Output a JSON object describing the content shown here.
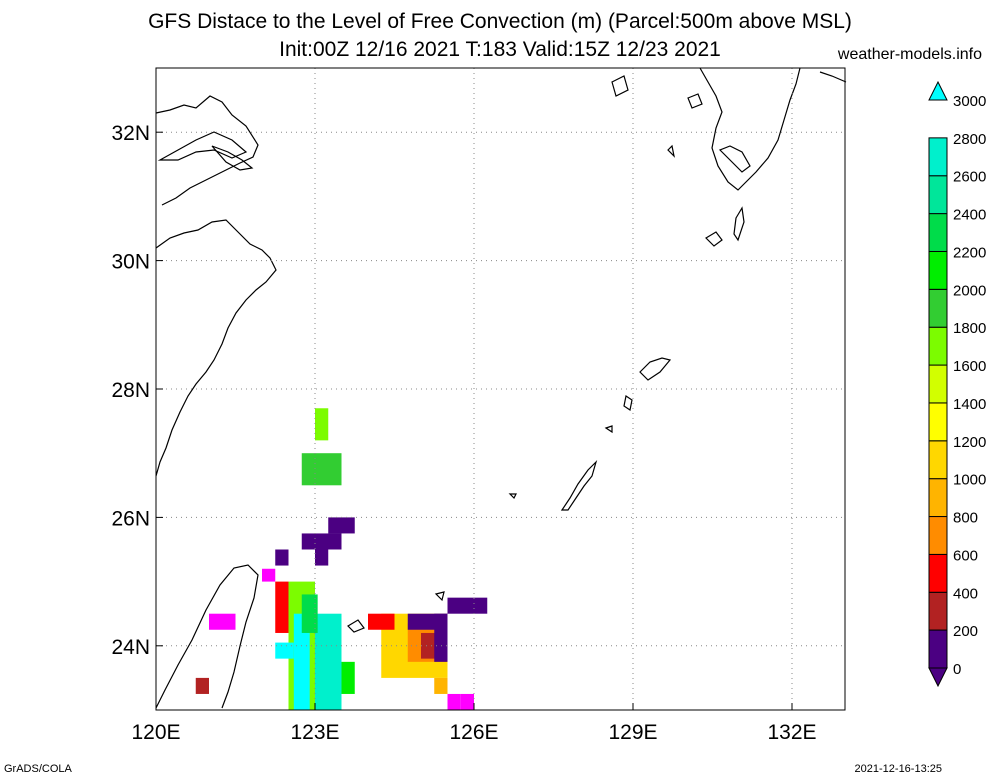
{
  "title_line1": "GFS Distace to the Level of Free Convection (m) (Parcel:500m above MSL)",
  "title_line2": "Init:00Z 12/16 2021 T:183 Valid:15Z 12/23 2021",
  "credit": "weather-models.info",
  "footer_left": "GrADS/COLA",
  "footer_right": "2021-12-16-13:25",
  "map": {
    "lon_range": [
      120,
      133
    ],
    "lat_range": [
      23,
      33
    ],
    "grid": true,
    "lon_ticks": [
      {
        "value": 120,
        "label": "120E"
      },
      {
        "value": 123,
        "label": "123E"
      },
      {
        "value": 126,
        "label": "126E"
      },
      {
        "value": 129,
        "label": "129E"
      },
      {
        "value": 132,
        "label": "132E"
      }
    ],
    "lat_ticks": [
      {
        "value": 24,
        "label": "24N"
      },
      {
        "value": 26,
        "label": "26N"
      },
      {
        "value": 28,
        "label": "28N"
      },
      {
        "value": 30,
        "label": "30N"
      },
      {
        "value": 32,
        "label": "32N"
      }
    ]
  },
  "colorbar": {
    "levels": [
      "0",
      "200",
      "400",
      "600",
      "800",
      "1000",
      "1200",
      "1400",
      "1600",
      "1800",
      "2000",
      "2200",
      "2400",
      "2600",
      "2800",
      "3000"
    ],
    "colors": [
      "#4b0082",
      "#ff00ff",
      "#b22222",
      "#ff0000",
      "#ff8c00",
      "#ffb400",
      "#ffd700",
      "#ffff00",
      "#d2ff00",
      "#7cfc00",
      "#32cd32",
      "#00ee00",
      "#00dc4a",
      "#00e69a",
      "#00f0cc",
      "#00ffff"
    ]
  },
  "field_cells": [
    {
      "lon": 123.0,
      "lat": 27.2,
      "w": 0.25,
      "h": 0.5,
      "color": "#7cfc00"
    },
    {
      "lon": 122.75,
      "lat": 26.5,
      "w": 0.75,
      "h": 0.5,
      "color": "#32cd32"
    },
    {
      "lon": 123.25,
      "lat": 25.75,
      "w": 0.5,
      "h": 0.25,
      "color": "#4b0082"
    },
    {
      "lon": 122.75,
      "lat": 25.5,
      "w": 0.75,
      "h": 0.25,
      "color": "#4b0082"
    },
    {
      "lon": 122.25,
      "lat": 25.25,
      "w": 0.25,
      "h": 0.25,
      "color": "#4b0082"
    },
    {
      "lon": 123.0,
      "lat": 25.25,
      "w": 0.25,
      "h": 0.25,
      "color": "#4b0082"
    },
    {
      "lon": 122.0,
      "lat": 25.0,
      "w": 0.25,
      "h": 0.2,
      "color": "#ff00ff"
    },
    {
      "lon": 122.5,
      "lat": 23.0,
      "w": 0.5,
      "h": 2.0,
      "color": "#7cfc00"
    },
    {
      "lon": 122.6,
      "lat": 23.0,
      "w": 0.3,
      "h": 1.5,
      "color": "#00ffff"
    },
    {
      "lon": 123.0,
      "lat": 23.0,
      "w": 0.5,
      "h": 1.5,
      "color": "#00f0cc"
    },
    {
      "lon": 122.75,
      "lat": 24.2,
      "w": 0.3,
      "h": 0.6,
      "color": "#00dc4a"
    },
    {
      "lon": 122.25,
      "lat": 23.8,
      "w": 0.35,
      "h": 0.25,
      "color": "#00ffff"
    },
    {
      "lon": 123.5,
      "lat": 23.25,
      "w": 0.25,
      "h": 0.5,
      "color": "#00ee00"
    },
    {
      "lon": 122.25,
      "lat": 24.2,
      "w": 0.25,
      "h": 0.8,
      "color": "#ff0000"
    },
    {
      "lon": 124.25,
      "lat": 23.5,
      "w": 1.25,
      "h": 1.0,
      "color": "#ffd700"
    },
    {
      "lon": 124.75,
      "lat": 23.75,
      "w": 0.75,
      "h": 0.6,
      "color": "#ff8c00"
    },
    {
      "lon": 125.0,
      "lat": 23.8,
      "w": 0.5,
      "h": 0.4,
      "color": "#b22222"
    },
    {
      "lon": 125.25,
      "lat": 23.75,
      "w": 0.25,
      "h": 0.75,
      "color": "#4b0082"
    },
    {
      "lon": 124.75,
      "lat": 24.25,
      "w": 0.75,
      "h": 0.25,
      "color": "#4b0082"
    },
    {
      "lon": 124.0,
      "lat": 24.25,
      "w": 0.5,
      "h": 0.25,
      "color": "#ff0000"
    },
    {
      "lon": 125.5,
      "lat": 24.5,
      "w": 0.75,
      "h": 0.25,
      "color": "#4b0082"
    },
    {
      "lon": 125.5,
      "lat": 23.0,
      "w": 0.25,
      "h": 0.25,
      "color": "#ff00ff"
    },
    {
      "lon": 125.75,
      "lat": 23.0,
      "w": 0.25,
      "h": 0.25,
      "color": "#ff00ff"
    },
    {
      "lon": 125.25,
      "lat": 23.25,
      "w": 0.25,
      "h": 0.25,
      "color": "#ffb400"
    },
    {
      "lon": 121.0,
      "lat": 24.25,
      "w": 0.5,
      "h": 0.25,
      "color": "#ff00ff"
    },
    {
      "lon": 120.75,
      "lat": 23.25,
      "w": 0.25,
      "h": 0.25,
      "color": "#b22222"
    }
  ]
}
